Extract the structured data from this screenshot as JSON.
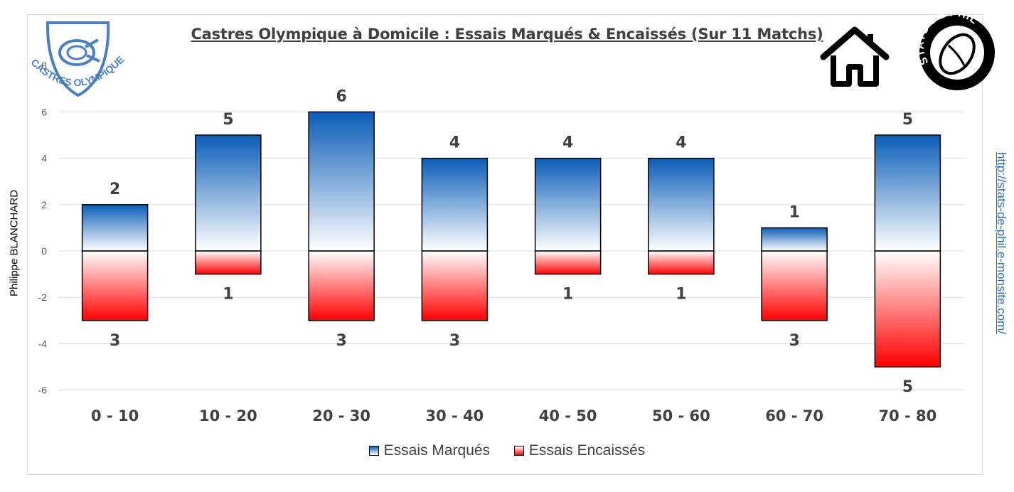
{
  "chart_data": {
    "type": "bar",
    "title": "Castres Olympique à Domicile : Essais Marqués & Encaissés (Sur 11 Matchs)",
    "categories": [
      "0 - 10",
      "10 - 20",
      "20 - 30",
      "30 - 40",
      "40 - 50",
      "50 - 60",
      "60 - 70",
      "70 - 80"
    ],
    "series": [
      {
        "name": "Essais Marqués",
        "values": [
          2,
          5,
          6,
          4,
          4,
          4,
          1,
          5
        ],
        "labels": [
          "2",
          "5",
          "6",
          "4",
          "4",
          "4",
          "1",
          "5"
        ]
      },
      {
        "name": "Essais Encaissés",
        "values": [
          -3,
          -1,
          -3,
          -3,
          -1,
          -1,
          -3,
          -5
        ],
        "labels": [
          "3",
          "1",
          "3",
          "3",
          "1",
          "1",
          "3",
          "5"
        ]
      }
    ],
    "yticks": [
      -6,
      -4,
      -2,
      0,
      2,
      4,
      6,
      8
    ],
    "ytick_labels": [
      "-6",
      "-4",
      "-2",
      "0",
      "2",
      "4",
      "6",
      "8"
    ],
    "ylim": [
      -6,
      8
    ],
    "grid": true,
    "legend": "bottom",
    "ylabel": "Philippe BLANCHARD",
    "source_url": "http://stats-de-phil.e-monsite.com/"
  },
  "logo": {
    "text": "CASTRES OLYMPIQUE",
    "color": "#4a7fc1"
  },
  "badge": {
    "text": "STATS DE PHIL"
  },
  "colors": {
    "blue_top": "#0a5db8",
    "red_bottom": "#ff0000",
    "grid": "#d9d9d9",
    "text": "#404040"
  }
}
